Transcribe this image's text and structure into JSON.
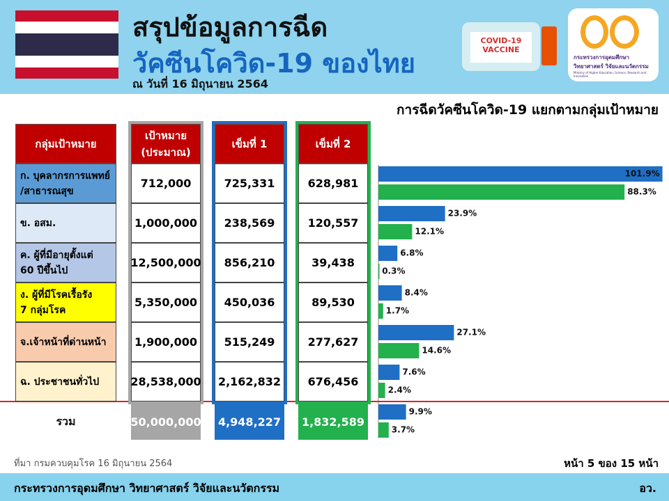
{
  "header": {
    "title_lines": [
      "สรุปข้อมูลการฉีด",
      "วัคซีนโควิด-19 ของไทย"
    ],
    "date": "ณ วันที่ 16 มิถุนายน 2564",
    "vaccine_label": [
      "COVID-19",
      "VACCINE"
    ],
    "logo_text": [
      "กระทรวงการอุดมศึกษา",
      "วิทยาศาสตร์ วิจัยและนวัตกรรม"
    ],
    "logo_subtext": "Ministry of Higher Education, Science, Research and Innovation"
  },
  "subtitle": "การฉีดวัคซีนโควิด-19 แยกตามกลุ่มเป้าหมาย",
  "table": {
    "headers": [
      [
        "กลุ่มเป้าหมาย"
      ],
      [
        "เป้าหมาย",
        "(ประมาณ)"
      ],
      [
        "เข็มที่ 1"
      ],
      [
        "เข็มที่ 2"
      ]
    ],
    "rows": [
      {
        "group": [
          "ก. บุคลากรการแพทย์",
          "/สาธารณสุข"
        ],
        "target": "712,000",
        "dose1": "725,331",
        "dose2": "628,981",
        "bg": "#5b9bd5"
      },
      {
        "group": [
          "ข. อสม."
        ],
        "target": "1,000,000",
        "dose1": "238,569",
        "dose2": "120,557",
        "bg": "#dde9f7"
      },
      {
        "group": [
          "ค. ผู้ที่มีอายุตั้งแต่",
          "60 ปีขึ้นไป"
        ],
        "target": "12,500,000",
        "dose1": "856,210",
        "dose2": "39,438",
        "bg": "#b4c7e7"
      },
      {
        "group": [
          "ง. ผู้ที่มีโรคเรื้อรัง",
          "7 กลุ่มโรค"
        ],
        "target": "5,350,000",
        "dose1": "450,036",
        "dose2": "89,530",
        "bg": "#ffff00"
      },
      {
        "group": [
          "จ.เจ้าหน้าที่ด่านหน้า"
        ],
        "target": "1,900,000",
        "dose1": "515,249",
        "dose2": "277,627",
        "bg": "#f8cbad"
      },
      {
        "group": [
          "ฉ. ประชาชนทั่วไป"
        ],
        "target": "28,538,000",
        "dose1": "2,162,832",
        "dose2": "676,456",
        "bg": "#fff2cc"
      }
    ],
    "total": {
      "group": [
        "รวม"
      ],
      "target": "50,000,000",
      "dose1": "4,948,227",
      "dose2": "1,832,589"
    }
  },
  "chart_data": {
    "type": "bar",
    "orientation": "horizontal",
    "xlim": [
      0,
      100
    ],
    "series": [
      {
        "color": "#1f6fc5",
        "values": [
          101.9,
          23.9,
          6.8,
          8.4,
          27.1,
          7.6,
          9.9
        ],
        "value_labels": [
          "101.9%",
          "23.9%",
          "6.8%",
          "8.4%",
          "27.1%",
          "7.6%",
          "9.9%"
        ]
      },
      {
        "color": "#22b14c",
        "values": [
          88.3,
          12.1,
          0.3,
          1.7,
          14.6,
          2.4,
          3.7
        ],
        "value_labels": [
          "88.3%",
          "12.1%",
          "0.3%",
          "1.7%",
          "14.6%",
          "2.4%",
          "3.7%"
        ]
      }
    ]
  },
  "footer": {
    "source": "ที่มา กรมควบคุมโรค 16 มิถุนายน 2564",
    "page": "หน้า 5 ของ 15 หน้า",
    "ministry": "กระทรวงการอุดมศึกษา วิทยาศาสตร์ วิจัยและนวัตกรรม",
    "abbr": "อว."
  }
}
